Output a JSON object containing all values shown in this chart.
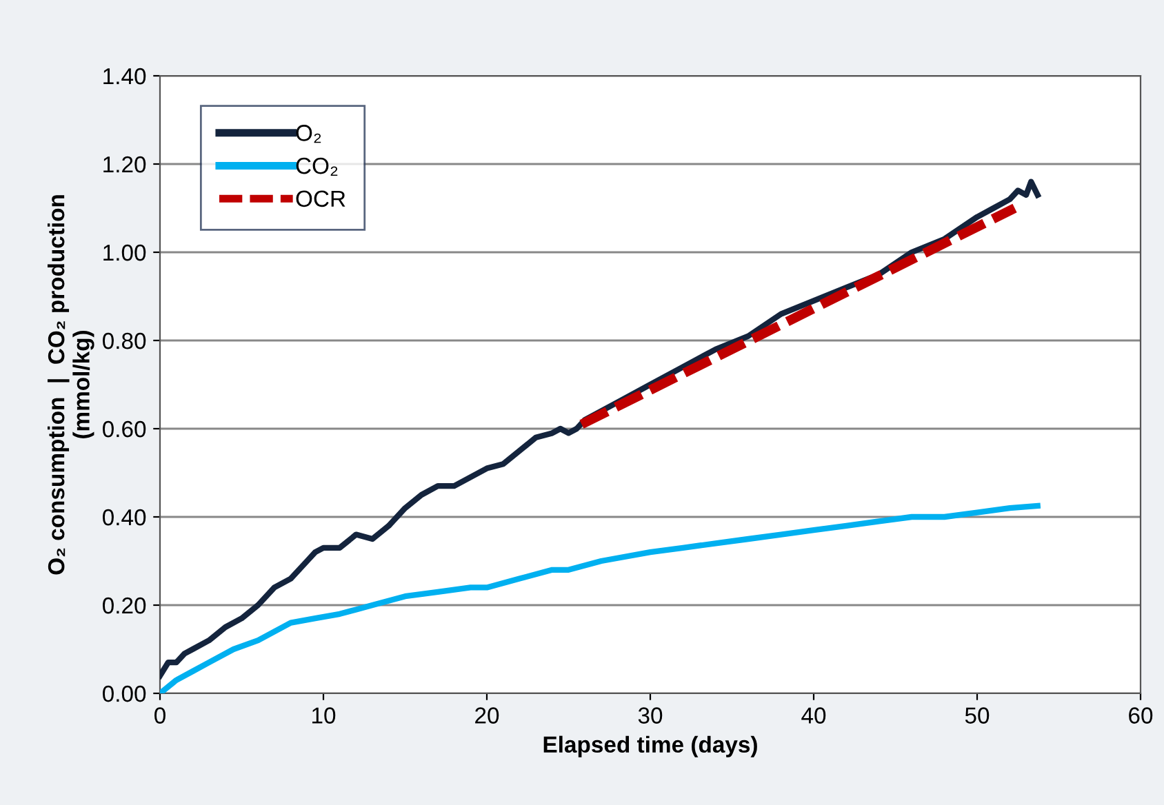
{
  "chart_data": {
    "type": "line",
    "xlabel": "Elapsed time (days)",
    "ylabel": "O₂ consumption  |  CO₂ production\n(mmol/kg)",
    "series": [
      {
        "name": "O₂",
        "color": "#14243d",
        "line_style": "solid",
        "x": [
          0,
          0.5,
          1,
          1.5,
          2,
          3,
          4,
          5,
          6,
          7,
          8,
          9,
          9.5,
          10,
          11,
          12,
          13,
          14,
          15,
          16,
          17,
          18,
          19,
          20,
          21,
          22,
          23,
          24,
          24.5,
          25,
          25.5,
          26,
          28,
          30,
          32,
          34,
          36,
          38,
          40,
          42,
          44,
          46,
          48,
          50,
          51,
          52,
          52.5,
          53,
          53.3,
          53.7
        ],
        "values": [
          0.04,
          0.07,
          0.07,
          0.09,
          0.1,
          0.12,
          0.15,
          0.17,
          0.2,
          0.24,
          0.26,
          0.3,
          0.32,
          0.33,
          0.33,
          0.36,
          0.35,
          0.38,
          0.42,
          0.45,
          0.47,
          0.47,
          0.49,
          0.51,
          0.52,
          0.55,
          0.58,
          0.59,
          0.6,
          0.59,
          0.6,
          0.62,
          0.66,
          0.7,
          0.74,
          0.78,
          0.81,
          0.86,
          0.89,
          0.92,
          0.95,
          1.0,
          1.03,
          1.08,
          1.1,
          1.12,
          1.14,
          1.13,
          1.16,
          1.13
        ]
      },
      {
        "name": "CO₂",
        "color": "#00b0f0",
        "line_style": "solid",
        "x": [
          0,
          1,
          2,
          3,
          4.5,
          6,
          7,
          8,
          9.5,
          11,
          12,
          13,
          15,
          17,
          19,
          20,
          22,
          24,
          25,
          27,
          30,
          32,
          34,
          36,
          38,
          40,
          42,
          44,
          46,
          48,
          50,
          52,
          53.7
        ],
        "values": [
          0.0,
          0.03,
          0.05,
          0.07,
          0.1,
          0.12,
          0.14,
          0.16,
          0.17,
          0.18,
          0.19,
          0.2,
          0.22,
          0.23,
          0.24,
          0.24,
          0.26,
          0.28,
          0.28,
          0.3,
          0.32,
          0.33,
          0.34,
          0.35,
          0.36,
          0.37,
          0.38,
          0.39,
          0.4,
          0.4,
          0.41,
          0.42,
          0.425
        ]
      },
      {
        "name": "OCR",
        "color": "#c00000",
        "line_style": "dashed",
        "x": [
          25.8,
          52.3
        ],
        "values": [
          0.61,
          1.1
        ]
      }
    ],
    "xlim": [
      0,
      60
    ],
    "xticks": [
      0,
      10,
      20,
      30,
      40,
      50,
      60
    ],
    "ylim": [
      0,
      1.4
    ],
    "yticks": [
      {
        "value": 0,
        "label": "0.00"
      },
      {
        "value": 0.2,
        "label": "0.20"
      },
      {
        "value": 0.4,
        "label": "0.40"
      },
      {
        "value": 0.6,
        "label": "0.60"
      },
      {
        "value": 0.8,
        "label": "0.80"
      },
      {
        "value": 1.0,
        "label": "1.00"
      },
      {
        "value": 1.2,
        "label": "1.20"
      },
      {
        "value": 1.4,
        "label": "1.40"
      }
    ],
    "grid": "y",
    "legend": "top left",
    "marker": "none"
  }
}
